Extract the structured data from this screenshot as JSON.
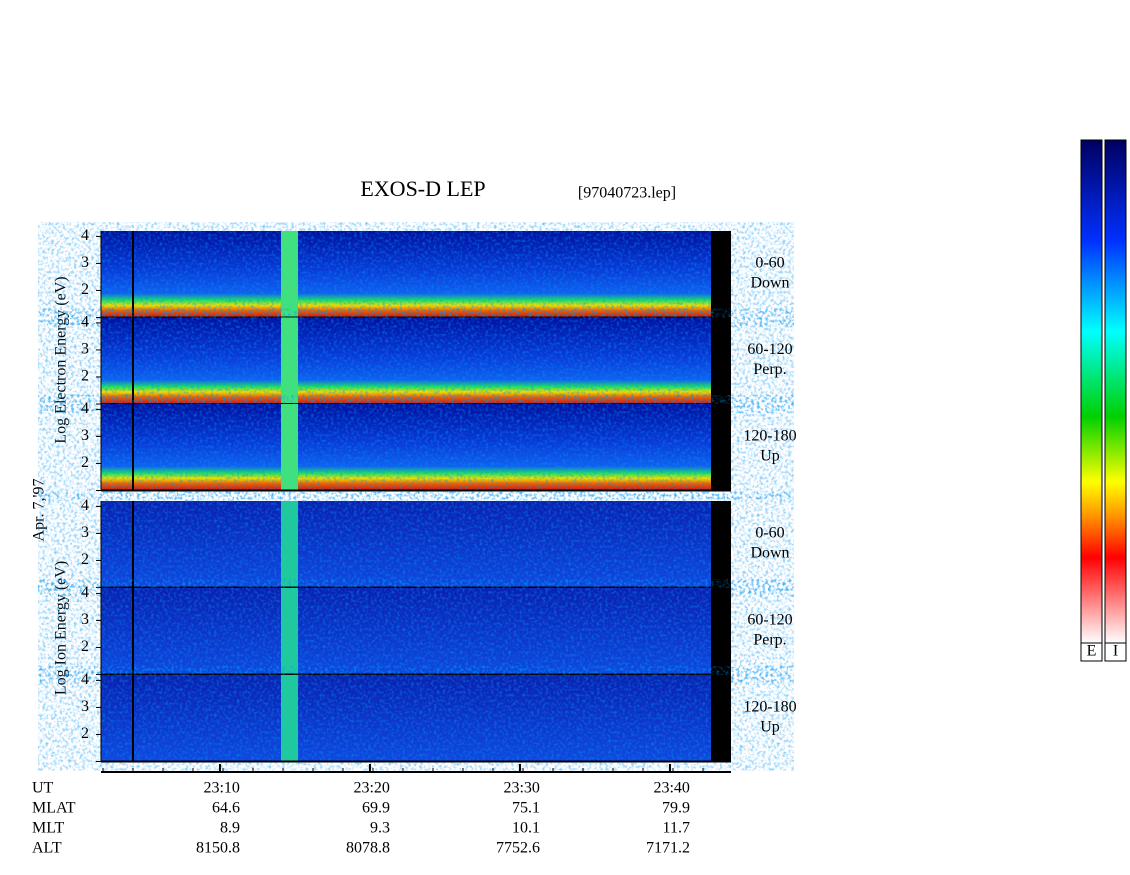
{
  "title": "EXOS-D LEP",
  "file": "[97040723.lep]",
  "date": "Apr. 7,'97",
  "electron_axis_label": "Log Electron Energy (eV)",
  "ion_axis_label": "Log Ion Energy (eV)",
  "panels": [
    {
      "species": "electron",
      "angle": "0-60",
      "direction": "Down"
    },
    {
      "species": "electron",
      "angle": "60-120",
      "direction": "Perp."
    },
    {
      "species": "electron",
      "angle": "120-180",
      "direction": "Up"
    },
    {
      "species": "ion",
      "angle": "0-60",
      "direction": "Down"
    },
    {
      "species": "ion",
      "angle": "60-120",
      "direction": "Perp."
    },
    {
      "species": "ion",
      "angle": "120-180",
      "direction": "Up"
    }
  ],
  "ylim": [
    1,
    4.2
  ],
  "yticks": [
    2,
    3,
    4
  ],
  "time_axis": {
    "label": "UT",
    "xlim": [
      2.07,
      44.07
    ],
    "xticks": [
      {
        "value": 10,
        "label": "23:10"
      },
      {
        "value": 20,
        "label": "23:20"
      },
      {
        "value": 30,
        "label": "23:30"
      },
      {
        "value": 40,
        "label": "23:40"
      }
    ]
  },
  "ephemeris": [
    {
      "name": "MLAT",
      "values": [
        64.6,
        69.9,
        75.1,
        79.9
      ]
    },
    {
      "name": "MLT",
      "values": [
        8.9,
        9.3,
        10.1,
        11.7
      ]
    },
    {
      "name": "ALT",
      "values": [
        8150.8,
        8078.8,
        7752.6,
        7171.2
      ]
    }
  ],
  "colorbars": [
    "E",
    "I"
  ]
}
